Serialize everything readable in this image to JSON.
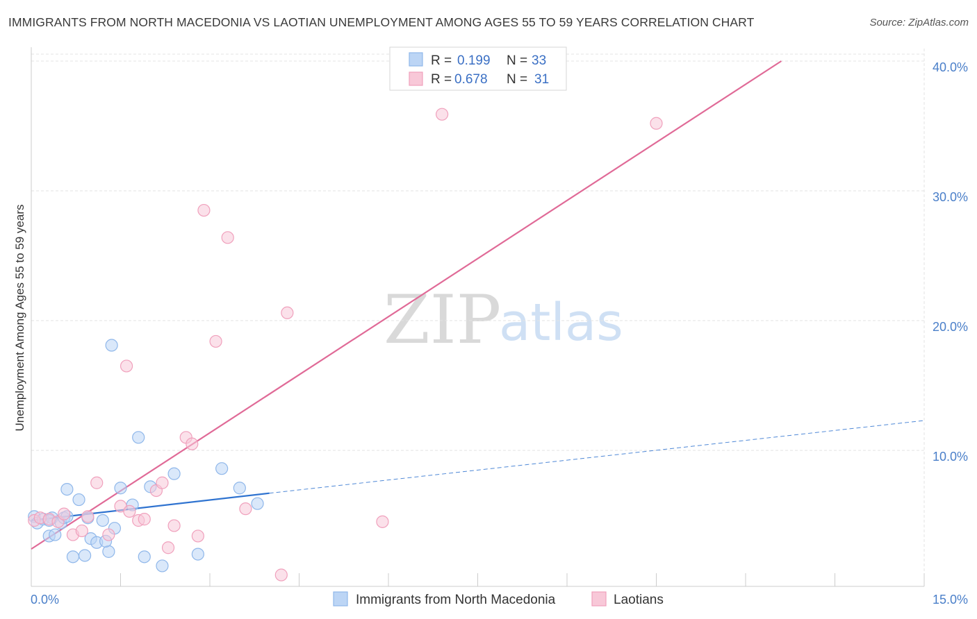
{
  "header": {
    "title": "IMMIGRANTS FROM NORTH MACEDONIA VS LAOTIAN UNEMPLOYMENT AMONG AGES 55 TO 59 YEARS CORRELATION CHART",
    "source": "Source: ZipAtlas.com"
  },
  "watermark": {
    "zip": "ZIP",
    "atlas": "atlas"
  },
  "chart_data": {
    "type": "scatter",
    "title": "IMMIGRANTS FROM NORTH MACEDONIA VS LAOTIAN UNEMPLOYMENT AMONG AGES 55 TO 59 YEARS CORRELATION CHART",
    "xlabel": "",
    "ylabel": "Unemployment Among Ages 55 to 59 years",
    "xlim": [
      0,
      15
    ],
    "ylim": [
      0,
      40
    ],
    "x_tick_labels": [
      "0.0%",
      "15.0%"
    ],
    "y_ticks": [
      10,
      20,
      30,
      40
    ],
    "y_tick_labels": [
      "10.0%",
      "20.0%",
      "30.0%",
      "40.0%"
    ],
    "grid": true,
    "legend": {
      "position": "top-center",
      "entries": [
        {
          "r_label": "R =",
          "r_value": "0.199",
          "n_label": "N =",
          "n_value": "33"
        },
        {
          "r_label": "R =",
          "r_value": "0.678",
          "n_label": "N =",
          "n_value": "31"
        }
      ]
    },
    "series": [
      {
        "name": "Immigrants from North Macedonia",
        "color": "#8fb7ea",
        "fill": "#bcd5f5",
        "line_color": "#2f73d0",
        "trend": {
          "x0": 0,
          "y0": 4.6,
          "x1": 4.0,
          "y1": 6.7,
          "dash_to_x": 15,
          "dash_to_y": 12.3
        },
        "points": [
          [
            0.05,
            4.9
          ],
          [
            0.1,
            4.4
          ],
          [
            0.2,
            4.7
          ],
          [
            0.3,
            3.4
          ],
          [
            0.35,
            4.8
          ],
          [
            0.4,
            3.5
          ],
          [
            0.5,
            4.4
          ],
          [
            0.55,
            4.8
          ],
          [
            0.6,
            7.0
          ],
          [
            0.7,
            1.8
          ],
          [
            0.8,
            6.2
          ],
          [
            0.9,
            1.9
          ],
          [
            0.95,
            4.8
          ],
          [
            1.0,
            3.2
          ],
          [
            1.1,
            2.9
          ],
          [
            1.2,
            4.6
          ],
          [
            1.3,
            2.2
          ],
          [
            1.35,
            18.1
          ],
          [
            1.4,
            4.0
          ],
          [
            1.5,
            7.1
          ],
          [
            1.7,
            5.8
          ],
          [
            1.8,
            11.0
          ],
          [
            1.9,
            1.8
          ],
          [
            2.0,
            7.2
          ],
          [
            2.2,
            1.1
          ],
          [
            2.4,
            8.2
          ],
          [
            2.8,
            2.0
          ],
          [
            3.2,
            8.6
          ],
          [
            3.5,
            7.1
          ],
          [
            3.8,
            5.9
          ],
          [
            0.3,
            4.6
          ],
          [
            0.6,
            4.9
          ],
          [
            1.25,
            3.0
          ]
        ]
      },
      {
        "name": "Laotians",
        "color": "#f0a0bc",
        "fill": "#f8c8d8",
        "line_color": "#e06a97",
        "trend": {
          "x0": 0,
          "y0": 2.4,
          "x1": 12.6,
          "y1": 40.0
        },
        "points": [
          [
            0.05,
            4.6
          ],
          [
            0.15,
            4.8
          ],
          [
            0.3,
            4.7
          ],
          [
            0.45,
            4.5
          ],
          [
            0.55,
            5.1
          ],
          [
            0.7,
            3.5
          ],
          [
            0.85,
            3.8
          ],
          [
            0.95,
            4.9
          ],
          [
            1.1,
            7.5
          ],
          [
            1.3,
            3.5
          ],
          [
            1.5,
            5.7
          ],
          [
            1.65,
            5.3
          ],
          [
            1.6,
            16.5
          ],
          [
            1.8,
            4.6
          ],
          [
            1.9,
            4.7
          ],
          [
            2.1,
            6.9
          ],
          [
            2.2,
            7.5
          ],
          [
            2.3,
            2.5
          ],
          [
            2.4,
            4.2
          ],
          [
            2.6,
            11.0
          ],
          [
            2.7,
            10.5
          ],
          [
            2.8,
            3.4
          ],
          [
            2.9,
            28.5
          ],
          [
            3.1,
            18.4
          ],
          [
            3.3,
            26.4
          ],
          [
            3.6,
            5.5
          ],
          [
            4.2,
            0.4
          ],
          [
            4.3,
            20.6
          ],
          [
            5.9,
            4.5
          ],
          [
            6.9,
            35.9
          ],
          [
            10.5,
            35.2
          ]
        ]
      }
    ]
  },
  "bottom_legend": {
    "items": [
      {
        "label": "Immigrants from North Macedonia"
      },
      {
        "label": "Laotians"
      }
    ]
  }
}
